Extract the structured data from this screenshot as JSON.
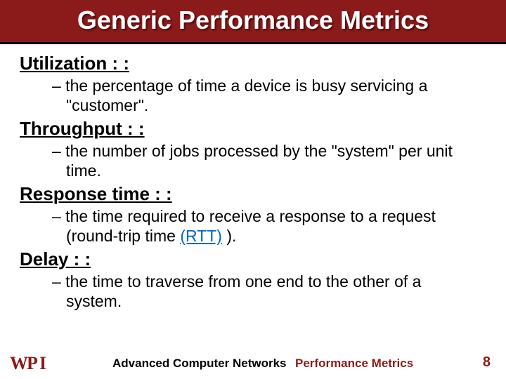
{
  "title": "Generic Performance Metrics",
  "metrics": [
    {
      "heading": "Utilization : :",
      "desc_pre": "– the percentage of time a device is busy servicing a \"customer\".",
      "desc_link": "",
      "desc_post": ""
    },
    {
      "heading": "Throughput : :",
      "desc_pre": "– the number of jobs processed by the \"system\" per unit time.",
      "desc_link": "",
      "desc_post": ""
    },
    {
      "heading": "Response time : :",
      "desc_pre": "–  the time required to receive a response to a request (round-trip time ",
      "desc_link": "(RTT)",
      "desc_post": " )."
    },
    {
      "heading": "Delay : :",
      "desc_pre": "– the time to traverse from one end to the other of a system.",
      "desc_link": "",
      "desc_post": ""
    }
  ],
  "footer": {
    "course": "Advanced Computer Networks",
    "topic": "Performance Metrics",
    "page": "8"
  },
  "colors": {
    "title_bg": "#8b1a1a",
    "title_fg": "#ffffff",
    "body_fg": "#000000",
    "accent": "#8b1a1a",
    "link": "#0066cc"
  }
}
